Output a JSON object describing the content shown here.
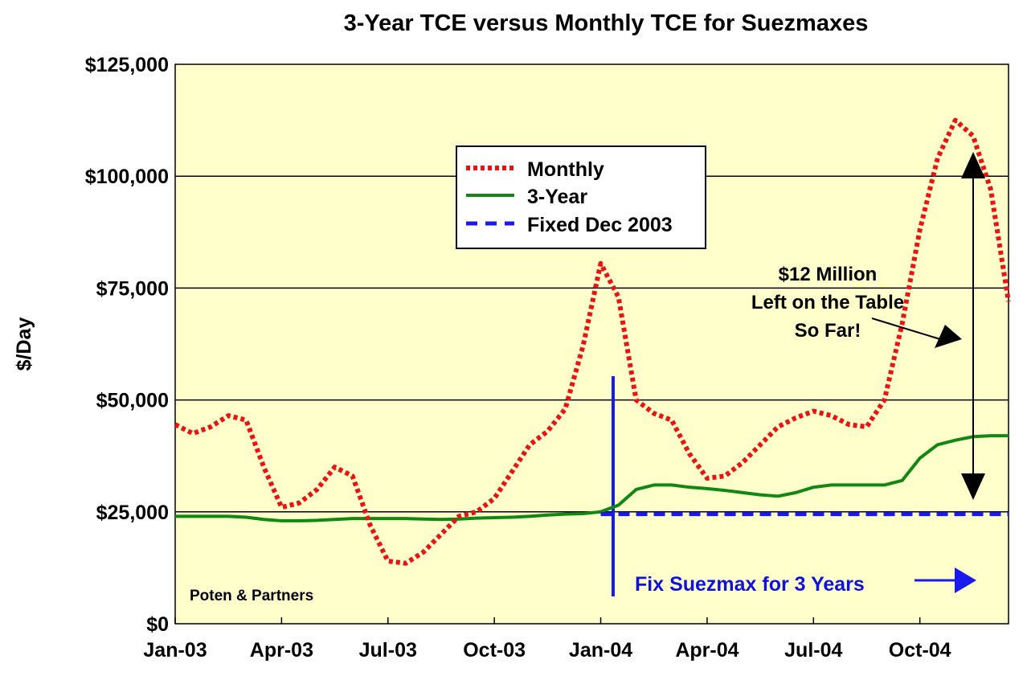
{
  "chart_data": {
    "type": "line",
    "title": "3-Year TCE versus Monthly TCE for Suezmaxes",
    "xlabel": "",
    "ylabel": "$/Day",
    "ylim": [
      0,
      125000
    ],
    "grid": true,
    "legend_position": "top-center",
    "x_tick_labels": [
      "Jan-03",
      "Apr-03",
      "Jul-03",
      "Oct-03",
      "Jan-04",
      "Apr-04",
      "Jul-04",
      "Oct-04"
    ],
    "y_tick_labels": [
      "$0",
      "$25,000",
      "$50,000",
      "$75,000",
      "$100,000",
      "$125,000"
    ],
    "y_ticks": [
      0,
      25000,
      50000,
      75000,
      100000,
      125000
    ],
    "x_months": [
      0,
      0.5,
      1,
      1.5,
      2,
      2.5,
      3,
      3.5,
      4,
      4.5,
      5,
      5.5,
      6,
      6.5,
      7,
      7.5,
      8,
      8.5,
      9,
      9.5,
      10,
      10.5,
      11,
      11.5,
      12,
      12.5,
      13,
      13.5,
      14,
      14.5,
      15,
      15.5,
      16,
      16.5,
      17,
      17.5,
      18,
      18.5,
      19,
      19.5,
      20,
      20.5,
      21,
      21.5,
      22,
      22.5,
      23,
      23.5
    ],
    "series": [
      {
        "name": "Monthly",
        "color": "#ee1111",
        "style": "dotted",
        "values": [
          44500,
          42500,
          44000,
          46500,
          45500,
          35000,
          26000,
          27000,
          30000,
          35000,
          33000,
          22000,
          14000,
          13500,
          16000,
          20000,
          24000,
          25000,
          28000,
          34000,
          40000,
          43000,
          48000,
          62000,
          80500,
          73000,
          50000,
          47000,
          45500,
          38000,
          32500,
          33000,
          36000,
          40000,
          44000,
          46000,
          47500,
          46500,
          44500,
          44000,
          50000,
          67000,
          88000,
          104000,
          112500,
          109000,
          97000,
          72000
        ]
      },
      {
        "name": "3-Year",
        "color": "#118811",
        "style": "solid",
        "values": [
          24000,
          24000,
          24000,
          24000,
          23800,
          23300,
          23000,
          23000,
          23100,
          23300,
          23500,
          23500,
          23500,
          23500,
          23400,
          23300,
          23400,
          23600,
          23700,
          23800,
          24000,
          24300,
          24500,
          24600,
          25000,
          26500,
          30000,
          31000,
          31000,
          30500,
          30200,
          29800,
          29300,
          28800,
          28500,
          29300,
          30500,
          31000,
          31000,
          31000,
          31000,
          32000,
          37000,
          40000,
          41000,
          41800,
          42000,
          42000
        ]
      },
      {
        "name": "Fixed Dec 2003",
        "color": "#1a1aee",
        "style": "dashed",
        "from_month": 12,
        "to_month": 23.5,
        "value": 24500
      }
    ],
    "annotations": {
      "left_on_table": [
        "$12 Million",
        "Left on the Table",
        "So Far!"
      ],
      "fix_note": "Fix Suezmax for 3 Years",
      "source": "Poten & Partners"
    },
    "plot_background": "#ffffcc"
  }
}
